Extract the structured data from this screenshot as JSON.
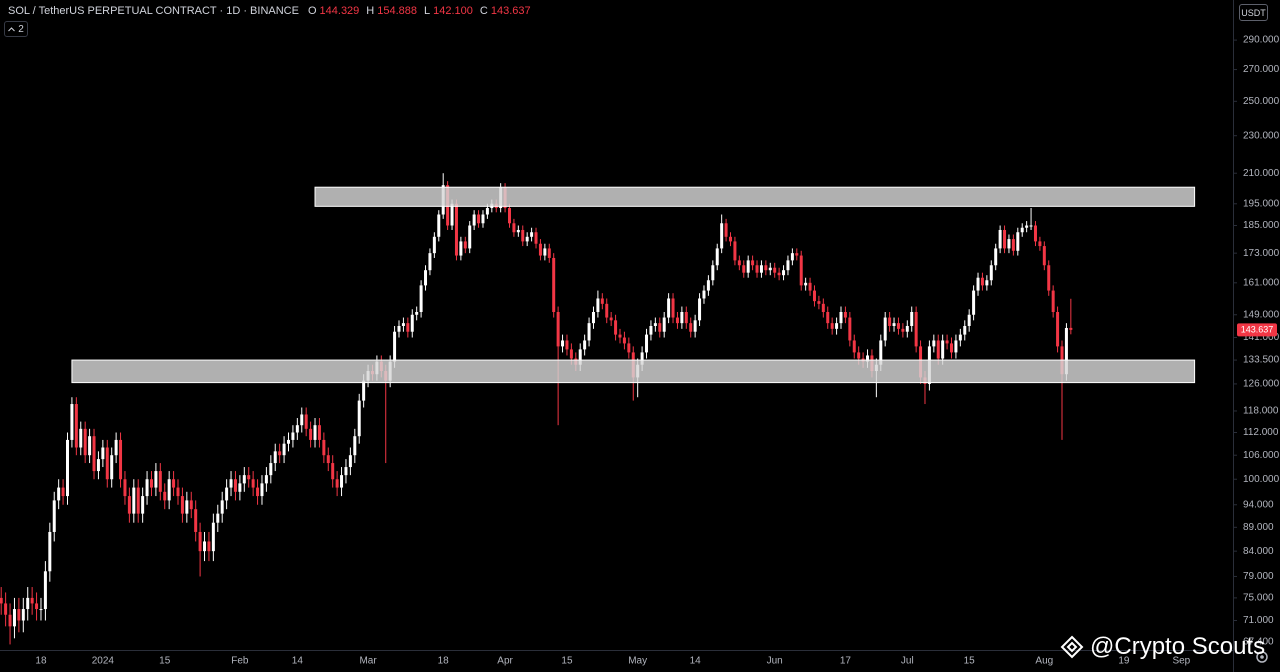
{
  "chart_data": {
    "type": "candlestick",
    "title": "SOL / TetherUS PERPETUAL CONTRACT · 1D · BINANCE",
    "legend_values": [
      {
        "label": "O",
        "value": "144.329"
      },
      {
        "label": "H",
        "value": "154.888"
      },
      {
        "label": "L",
        "value": "142.100"
      },
      {
        "label": "C",
        "value": "143.637"
      }
    ],
    "indicators_count": "2",
    "currency_button": "USDT",
    "last_price_label": "143.637",
    "watermark": "@Crypto Scouts",
    "log_scale": true,
    "grid": false,
    "up_color": "#ffffff",
    "down_color": "#f23645",
    "categories": [
      null,
      null,
      null,
      null,
      null,
      null,
      null,
      null,
      null,
      "18",
      null,
      null,
      null,
      null,
      null,
      null,
      null,
      null,
      null,
      null,
      null,
      null,
      null,
      "2024",
      null,
      null,
      null,
      null,
      null,
      null,
      null,
      null,
      null,
      null,
      null,
      null,
      null,
      "15",
      null,
      null,
      null,
      null,
      null,
      null,
      null,
      null,
      null,
      null,
      null,
      null,
      null,
      null,
      null,
      null,
      "Feb",
      null,
      null,
      null,
      null,
      null,
      null,
      null,
      null,
      null,
      null,
      null,
      null,
      "14",
      null,
      null,
      null,
      null,
      null,
      null,
      null,
      null,
      null,
      null,
      null,
      null,
      null,
      null,
      null,
      "Mar",
      null,
      null,
      null,
      null,
      null,
      null,
      null,
      null,
      null,
      null,
      null,
      null,
      null,
      null,
      null,
      null,
      "18",
      null,
      null,
      null,
      null,
      null,
      null,
      null,
      null,
      null,
      null,
      null,
      null,
      null,
      "Apr",
      null,
      null,
      null,
      null,
      null,
      null,
      null,
      null,
      null,
      null,
      null,
      null,
      null,
      "15",
      null,
      null,
      null,
      null,
      null,
      null,
      null,
      null,
      null,
      null,
      null,
      null,
      null,
      null,
      null,
      "May",
      null,
      null,
      null,
      null,
      null,
      null,
      null,
      null,
      null,
      null,
      null,
      null,
      "14",
      null,
      null,
      null,
      null,
      null,
      null,
      null,
      null,
      null,
      null,
      null,
      null,
      null,
      null,
      null,
      null,
      null,
      "Jun",
      null,
      null,
      null,
      null,
      null,
      null,
      null,
      null,
      null,
      null,
      null,
      null,
      null,
      null,
      null,
      "17",
      null,
      null,
      null,
      null,
      null,
      null,
      null,
      null,
      null,
      null,
      null,
      null,
      null,
      "Jul",
      null,
      null,
      null,
      null,
      null,
      null,
      null,
      null,
      null,
      null,
      null,
      null,
      null,
      "15",
      null,
      null,
      null,
      null,
      null,
      null,
      null,
      null,
      null,
      null,
      null,
      null,
      null,
      null,
      null,
      null,
      "Aug",
      null,
      null,
      null,
      null,
      null,
      null,
      null,
      null,
      null,
      null,
      null,
      null,
      null,
      null,
      null,
      null,
      null,
      "19",
      null,
      null,
      null,
      null,
      null,
      null,
      null,
      null,
      null,
      null,
      null,
      null,
      "Sep",
      null,
      null,
      null
    ],
    "open": [
      75,
      74,
      72,
      70,
      73,
      71,
      73,
      75,
      74,
      73,
      73,
      80,
      88,
      95,
      98,
      96,
      110,
      120,
      108,
      113,
      106,
      111,
      102,
      105,
      108,
      100,
      106,
      110,
      100,
      96,
      92,
      98,
      92,
      96,
      100,
      98,
      102,
      97,
      95,
      100,
      98,
      96,
      92,
      95,
      93,
      88,
      84,
      86,
      84,
      90,
      92,
      95,
      98,
      100,
      97,
      99,
      101,
      100,
      98,
      96,
      99,
      101,
      104,
      107,
      106,
      109,
      110,
      112,
      114,
      117,
      113,
      110,
      114,
      110,
      106,
      104,
      100,
      98,
      101,
      103,
      106,
      111,
      121,
      127,
      130,
      129,
      133,
      130,
      127,
      133,
      143,
      145,
      146,
      143,
      149,
      150,
      160,
      166,
      173,
      180,
      190,
      204,
      185,
      195,
      172,
      178,
      175,
      185,
      190,
      186,
      190,
      193,
      195,
      193,
      203,
      193,
      186,
      182,
      183,
      178,
      180,
      182,
      177,
      172,
      175,
      171,
      150,
      138,
      140,
      137,
      134,
      132,
      137,
      140,
      146,
      150,
      155,
      153,
      148,
      147,
      142,
      141,
      139,
      136,
      128,
      132,
      136,
      142,
      145,
      146,
      143,
      148,
      155,
      148,
      146,
      150,
      146,
      143,
      147,
      155,
      158,
      162,
      168,
      175,
      186,
      180,
      178,
      170,
      168,
      165,
      170,
      168,
      165,
      168,
      166,
      167,
      165,
      164,
      166,
      170,
      173,
      172,
      160,
      161,
      158,
      154,
      153,
      150,
      146,
      144,
      146,
      150,
      148,
      140,
      136,
      134,
      133,
      135,
      130,
      132,
      140,
      148,
      145,
      146,
      144,
      143,
      145,
      150,
      138,
      128,
      126,
      138,
      140,
      134,
      140,
      139,
      136,
      140,
      142,
      145,
      149,
      158,
      163,
      160,
      162,
      168,
      175,
      183,
      175,
      179,
      174,
      182,
      184,
      185,
      185,
      178,
      176,
      168,
      158,
      150,
      138,
      129,
      144.329,
      null,
      null,
      null,
      null,
      null,
      null,
      null,
      null,
      null,
      null,
      null,
      null,
      null,
      null,
      null,
      null,
      null,
      null,
      null,
      null,
      null,
      null,
      null,
      null,
      null,
      null,
      null,
      null
    ],
    "high": [
      77,
      76,
      74,
      75,
      75,
      75,
      77,
      77,
      76,
      75,
      82,
      90,
      97,
      100,
      100,
      112,
      122,
      122,
      115,
      115,
      113,
      113,
      107,
      110,
      110,
      108,
      112,
      112,
      102,
      98,
      100,
      100,
      98,
      102,
      102,
      104,
      104,
      99,
      102,
      102,
      100,
      98,
      97,
      97,
      95,
      90,
      88,
      88,
      92,
      94,
      97,
      100,
      102,
      102,
      101,
      103,
      103,
      102,
      100,
      101,
      103,
      106,
      109,
      109,
      111,
      112,
      114,
      116,
      119,
      119,
      115,
      116,
      116,
      112,
      108,
      106,
      102,
      103,
      105,
      108,
      113,
      123,
      129,
      132,
      132,
      135,
      135,
      132,
      135,
      145,
      147,
      148,
      148,
      151,
      152,
      162,
      168,
      175,
      182,
      192,
      210,
      206,
      197,
      197,
      180,
      180,
      187,
      192,
      192,
      192,
      195,
      197,
      197,
      205,
      205,
      195,
      188,
      185,
      185,
      182,
      184,
      184,
      179,
      177,
      177,
      173,
      152,
      142,
      142,
      139,
      136,
      139,
      142,
      148,
      152,
      158,
      157,
      155,
      150,
      149,
      144,
      143,
      141,
      138,
      134,
      138,
      144,
      147,
      148,
      148,
      150,
      157,
      157,
      150,
      152,
      152,
      148,
      149,
      157,
      160,
      164,
      170,
      177,
      190,
      188,
      182,
      180,
      172,
      170,
      172,
      172,
      170,
      170,
      170,
      169,
      169,
      167,
      168,
      172,
      175,
      175,
      174,
      163,
      163,
      160,
      156,
      155,
      152,
      148,
      148,
      152,
      152,
      150,
      142,
      138,
      136,
      137,
      137,
      134,
      142,
      150,
      150,
      148,
      148,
      146,
      147,
      152,
      152,
      140,
      130,
      140,
      142,
      142,
      142,
      142,
      141,
      142,
      144,
      147,
      151,
      160,
      165,
      165,
      164,
      170,
      177,
      185,
      185,
      181,
      181,
      184,
      186,
      187,
      193,
      187,
      180,
      178,
      170,
      160,
      152,
      140,
      146,
      154.888,
      null,
      null,
      null,
      null,
      null,
      null,
      null,
      null,
      null,
      null,
      null,
      null,
      null,
      null,
      null,
      null,
      null,
      null,
      null,
      null,
      null,
      null,
      null,
      null,
      null,
      null,
      null,
      null
    ],
    "low": [
      72,
      70,
      67,
      68,
      69,
      69,
      71,
      72,
      71,
      71,
      71,
      78,
      86,
      93,
      94,
      94,
      108,
      106,
      106,
      104,
      104,
      100,
      100,
      103,
      98,
      98,
      104,
      98,
      94,
      90,
      90,
      90,
      90,
      94,
      96,
      96,
      95,
      93,
      93,
      96,
      94,
      90,
      90,
      91,
      86,
      79,
      82,
      82,
      82,
      88,
      90,
      93,
      96,
      95,
      95,
      97,
      98,
      96,
      94,
      94,
      97,
      99,
      102,
      104,
      104,
      107,
      108,
      110,
      112,
      111,
      108,
      108,
      108,
      104,
      102,
      98,
      96,
      96,
      99,
      101,
      104,
      109,
      119,
      125,
      127,
      127,
      128,
      104,
      125,
      131,
      141,
      143,
      141,
      141,
      147,
      148,
      158,
      164,
      171,
      178,
      188,
      183,
      183,
      170,
      170,
      173,
      173,
      183,
      184,
      184,
      188,
      191,
      191,
      191,
      191,
      184,
      180,
      180,
      176,
      176,
      178,
      175,
      170,
      170,
      169,
      148,
      114,
      136,
      135,
      132,
      130,
      130,
      135,
      138,
      144,
      148,
      151,
      146,
      145,
      140,
      139,
      137,
      134,
      121,
      122,
      130,
      134,
      140,
      143,
      141,
      141,
      146,
      146,
      144,
      144,
      144,
      141,
      141,
      145,
      153,
      156,
      160,
      166,
      173,
      178,
      176,
      168,
      166,
      163,
      163,
      166,
      163,
      163,
      164,
      164,
      163,
      162,
      162,
      164,
      168,
      170,
      158,
      158,
      156,
      152,
      151,
      148,
      144,
      142,
      142,
      144,
      146,
      138,
      134,
      132,
      131,
      131,
      128,
      122,
      130,
      138,
      143,
      143,
      142,
      141,
      141,
      143,
      136,
      126,
      120,
      124,
      136,
      132,
      132,
      137,
      134,
      134,
      138,
      140,
      143,
      147,
      156,
      158,
      158,
      160,
      166,
      173,
      173,
      173,
      172,
      172,
      180,
      182,
      183,
      176,
      174,
      166,
      156,
      148,
      136,
      110,
      127,
      142.1,
      null,
      null,
      null,
      null,
      null,
      null,
      null,
      null,
      null,
      null,
      null,
      null,
      null,
      null,
      null,
      null,
      null,
      null,
      null,
      null,
      null,
      null,
      null,
      null,
      null,
      null,
      null,
      null
    ],
    "close": [
      74,
      72,
      70,
      73,
      71,
      73,
      75,
      74,
      73,
      73,
      80,
      88,
      95,
      98,
      96,
      110,
      120,
      108,
      113,
      106,
      111,
      102,
      105,
      108,
      100,
      106,
      110,
      100,
      96,
      92,
      98,
      92,
      96,
      100,
      98,
      102,
      97,
      95,
      100,
      98,
      96,
      92,
      95,
      93,
      88,
      84,
      86,
      84,
      90,
      92,
      95,
      98,
      100,
      97,
      99,
      101,
      100,
      98,
      96,
      99,
      101,
      104,
      107,
      106,
      109,
      110,
      112,
      114,
      117,
      113,
      110,
      114,
      110,
      106,
      104,
      100,
      98,
      101,
      103,
      106,
      111,
      121,
      127,
      130,
      129,
      133,
      130,
      127,
      133,
      143,
      145,
      146,
      143,
      149,
      150,
      160,
      166,
      173,
      180,
      190,
      204,
      185,
      195,
      172,
      178,
      175,
      185,
      190,
      186,
      190,
      193,
      195,
      193,
      203,
      193,
      186,
      182,
      183,
      178,
      180,
      182,
      177,
      172,
      175,
      171,
      150,
      138,
      140,
      137,
      134,
      132,
      137,
      140,
      146,
      150,
      155,
      153,
      148,
      147,
      142,
      141,
      139,
      136,
      128,
      132,
      136,
      142,
      145,
      146,
      143,
      148,
      155,
      148,
      146,
      150,
      146,
      143,
      147,
      155,
      158,
      162,
      168,
      175,
      186,
      180,
      178,
      170,
      168,
      165,
      170,
      168,
      165,
      168,
      166,
      167,
      165,
      164,
      166,
      170,
      173,
      172,
      160,
      161,
      158,
      154,
      153,
      150,
      146,
      144,
      146,
      150,
      148,
      140,
      136,
      134,
      133,
      135,
      130,
      132,
      140,
      148,
      145,
      146,
      144,
      143,
      145,
      150,
      138,
      128,
      126,
      138,
      140,
      134,
      140,
      139,
      136,
      140,
      142,
      145,
      149,
      158,
      163,
      160,
      162,
      168,
      175,
      183,
      175,
      179,
      174,
      182,
      184,
      185,
      185,
      178,
      176,
      168,
      158,
      150,
      138,
      129,
      144.3,
      143.637,
      null,
      null,
      null,
      null,
      null,
      null,
      null,
      null,
      null,
      null,
      null,
      null,
      null,
      null,
      null,
      null,
      null,
      null,
      null,
      null,
      null,
      null,
      null,
      null,
      null,
      null,
      null,
      null
    ],
    "zones": [
      {
        "low": 193.8,
        "high": 203,
        "start": 71,
        "end": 270
      },
      {
        "low": 126.4,
        "high": 133.5,
        "start": 16,
        "end": 270
      }
    ],
    "ylim": [
      66.1,
      319.6
    ],
    "yticks": [
      {
        "value": 290,
        "label": "290.000"
      },
      {
        "value": 270,
        "label": "270.000"
      },
      {
        "value": 250,
        "label": "250.000"
      },
      {
        "value": 230,
        "label": "230.000"
      },
      {
        "value": 210,
        "label": "210.000"
      },
      {
        "value": 195,
        "label": "195.000"
      },
      {
        "value": 185,
        "label": "185.000"
      },
      {
        "value": 173,
        "label": "173.000"
      },
      {
        "value": 161,
        "label": "161.000"
      },
      {
        "value": 149,
        "label": "149.000"
      },
      {
        "value": 141,
        "label": "141.000"
      },
      {
        "value": 133.5,
        "label": "133.500"
      },
      {
        "value": 126,
        "label": "126.000"
      },
      {
        "value": 118,
        "label": "118.000"
      },
      {
        "value": 112,
        "label": "112.000"
      },
      {
        "value": 106,
        "label": "106.000"
      },
      {
        "value": 100,
        "label": "100.000"
      },
      {
        "value": 94,
        "label": "94.000"
      },
      {
        "value": 89,
        "label": "89.000"
      },
      {
        "value": 84,
        "label": "84.000"
      },
      {
        "value": 79,
        "label": "79.000"
      },
      {
        "value": 75,
        "label": "75.000"
      },
      {
        "value": 71,
        "label": "71.000"
      },
      {
        "value": 67.4,
        "label": "67.400"
      }
    ]
  }
}
